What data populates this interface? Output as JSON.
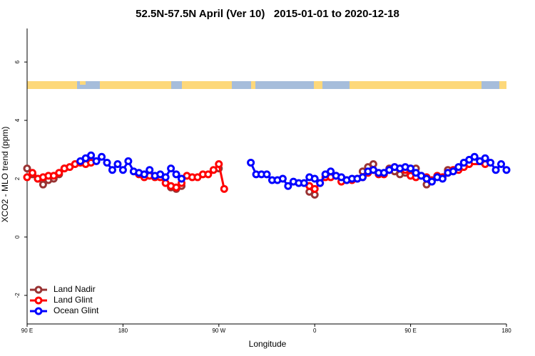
{
  "chart_data": {
    "type": "line",
    "title": "52.5N-57.5N April (Ver 10)   2015-01-01 to 2020-12-18",
    "x_label": "Longitude",
    "y_label": "XCO2 - MLO trend (ppm)",
    "xlim": [
      -270,
      180
    ],
    "xticks": [
      {
        "value": -270,
        "label": "90 E"
      },
      {
        "value": -180,
        "label": "180"
      },
      {
        "value": -90,
        "label": "90 W"
      },
      0,
      {
        "value": 90,
        "label": "90 E"
      },
      180
    ],
    "ylim": [
      -2.98,
      7.15
    ],
    "yticks": [
      -2,
      0,
      2,
      4,
      6
    ],
    "legend": "bottomleft",
    "series": [
      {
        "name": "Land Nadir",
        "color": "#993333",
        "x": [
          -270,
          -265,
          -260,
          -255,
          -250,
          -245,
          -240,
          -235,
          -200,
          -135,
          -130,
          -125,
          -110,
          -90,
          -50,
          -5,
          0,
          20,
          45,
          50,
          55,
          60,
          70,
          75,
          80,
          85,
          90,
          95,
          100,
          105,
          115,
          125
        ],
        "values": [
          2.35,
          2.15,
          2.0,
          1.8,
          1.95,
          2.0,
          2.15,
          2.35,
          null,
          1.7,
          1.65,
          1.75,
          null,
          2.35,
          null,
          1.55,
          1.45,
          null,
          2.25,
          2.4,
          2.5,
          null,
          2.35,
          2.25,
          2.15,
          2.2,
          2.35,
          2.35,
          null,
          1.8,
          null,
          2.3
        ]
      },
      {
        "name": "Land Glint",
        "color": "#ff0000",
        "x": [
          -270,
          -265,
          -260,
          -255,
          -250,
          -245,
          -240,
          -235,
          -230,
          -225,
          -220,
          -215,
          -210,
          -185,
          -165,
          -160,
          -155,
          -150,
          -145,
          -140,
          -135,
          -130,
          -125,
          -120,
          -115,
          -110,
          -105,
          -100,
          -95,
          -90,
          -85,
          -40,
          -5,
          0,
          5,
          10,
          15,
          20,
          25,
          30,
          35,
          40,
          45,
          50,
          55,
          60,
          65,
          70,
          75,
          80,
          85,
          90,
          95,
          100,
          105,
          110,
          115,
          120,
          125,
          130,
          135,
          140,
          145,
          160
        ],
        "values": [
          2.05,
          2.2,
          2.0,
          2.05,
          2.1,
          2.1,
          2.2,
          2.35,
          2.4,
          2.5,
          2.55,
          2.5,
          2.55,
          null,
          2.15,
          2.05,
          2.1,
          2.05,
          2.05,
          1.85,
          1.75,
          1.7,
          1.85,
          2.1,
          2.05,
          2.05,
          2.15,
          2.15,
          2.3,
          2.5,
          1.65,
          null,
          1.75,
          1.65,
          1.85,
          2.05,
          2.05,
          2.1,
          1.9,
          1.95,
          1.95,
          2.0,
          2.05,
          2.2,
          2.3,
          2.15,
          2.15,
          2.3,
          2.4,
          2.35,
          2.3,
          2.1,
          2.05,
          2.1,
          2.05,
          1.95,
          2.1,
          2.05,
          2.2,
          2.3,
          2.3,
          2.4,
          2.5,
          2.5
        ]
      },
      {
        "name": "Ocean Glint",
        "color": "#0000ff",
        "x": [
          -220,
          -215,
          -210,
          -205,
          -200,
          -195,
          -190,
          -185,
          -180,
          -175,
          -170,
          -165,
          -160,
          -155,
          -150,
          -145,
          -140,
          -135,
          -130,
          -125,
          -95,
          -60,
          -55,
          -50,
          -45,
          -40,
          -35,
          -30,
          -25,
          -20,
          -15,
          -10,
          -5,
          0,
          5,
          10,
          15,
          20,
          25,
          30,
          35,
          40,
          45,
          50,
          55,
          60,
          65,
          70,
          75,
          80,
          85,
          90,
          95,
          100,
          105,
          110,
          115,
          120,
          125,
          130,
          135,
          140,
          145,
          150,
          155,
          160,
          165,
          170,
          175,
          180
        ],
        "values": [
          2.6,
          2.7,
          2.8,
          2.6,
          2.75,
          2.55,
          2.3,
          2.5,
          2.3,
          2.6,
          2.25,
          2.2,
          2.15,
          2.3,
          2.1,
          2.15,
          2.05,
          2.35,
          2.15,
          2.0,
          null,
          2.55,
          2.15,
          2.15,
          2.15,
          1.95,
          1.95,
          2.0,
          1.75,
          1.9,
          1.85,
          1.85,
          2.05,
          2.0,
          1.85,
          2.15,
          2.25,
          2.1,
          2.05,
          1.95,
          2.0,
          2.0,
          2.05,
          2.25,
          2.3,
          2.2,
          2.2,
          2.3,
          2.4,
          2.35,
          2.4,
          2.35,
          2.2,
          2.1,
          2.0,
          1.9,
          2.05,
          2.0,
          2.2,
          2.25,
          2.4,
          2.55,
          2.65,
          2.75,
          2.6,
          2.7,
          2.55,
          2.3,
          2.5,
          2.3
        ]
      }
    ]
  }
}
